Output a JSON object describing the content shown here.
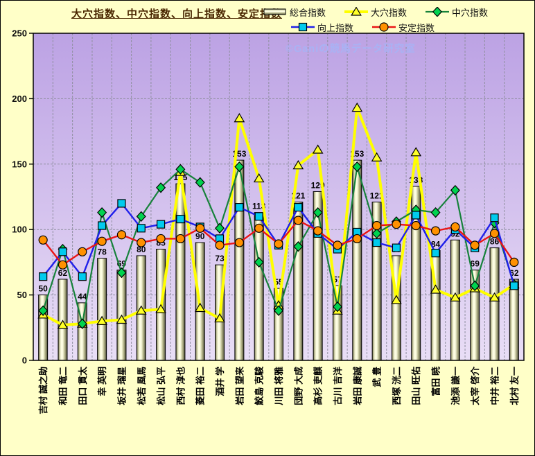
{
  "title": "大穴指数、中穴指数、向上指数、安定指数",
  "watermark": "©Ganiの競馬データ研究室",
  "colors": {
    "outer_bg": "#ffffc8",
    "title_color": "#4a2600",
    "plot_bg_top": "#bca2e4",
    "plot_bg_bottom": "#e9def6",
    "gridline": "#8f8f9f",
    "bar_edge_dark": "#50503a",
    "bar_mid": "#b9b98e",
    "bar_highlight": "#fdfde2",
    "watermark_color": "#a9b2f4",
    "axis_text": "#101010"
  },
  "legend": {
    "items": [
      {
        "label": "総合指数",
        "swatch": "bar"
      },
      {
        "label": "大穴指数",
        "swatch": "triangle"
      },
      {
        "label": "中穴指数",
        "swatch": "diamond"
      },
      {
        "label": "向上指数",
        "swatch": "square"
      },
      {
        "label": "安定指数",
        "swatch": "circle"
      }
    ]
  },
  "chart_data": {
    "type": "bar",
    "title": "大穴指数、中穴指数、向上指数、安定指数",
    "xlabel": "",
    "ylabel": "",
    "ylim": [
      0,
      250
    ],
    "y_ticks": [
      0,
      50,
      100,
      150,
      200,
      250
    ],
    "grid": true,
    "legend_position": "top",
    "categories": [
      "吉村 誠之助",
      "和田 竜二",
      "田口 貫太",
      "幸 英明",
      "坂井 瑠星",
      "松若 風馬",
      "松山 弘平",
      "西村 淳也",
      "菱田 裕二",
      "酒井 学",
      "岩田 望来",
      "鮫島 克駿",
      "川田 将雅",
      "団野 大成",
      "高杉 吏麒",
      "古川 吉洋",
      "岩田 康誠",
      "武 豊",
      "西塚 洸二",
      "田山 旺佑",
      "富田 暁",
      "池添 謙一",
      "太宰 啓介",
      "中井 裕二",
      "北村 友一"
    ],
    "series": [
      {
        "name": "総合指数",
        "type": "bar",
        "show_labels": true,
        "values": [
          50,
          62,
          44,
          78,
          69,
          80,
          85,
          135,
          90,
          73,
          153,
          113,
          55,
          121,
          129,
          57,
          153,
          121,
          80,
          133,
          84,
          92,
          69,
          86,
          62
        ]
      },
      {
        "name": "大穴指数",
        "type": "line",
        "marker": "triangle",
        "color": "#ffff00",
        "marker_color": "#ffff29",
        "width": 4,
        "values": [
          35,
          27,
          28,
          30,
          31,
          38,
          39,
          144,
          40,
          32,
          185,
          139,
          42,
          149,
          161,
          38,
          193,
          155,
          46,
          159,
          54,
          48,
          55,
          48,
          58
        ]
      },
      {
        "name": "中穴指数",
        "type": "line",
        "marker": "diamond",
        "color": "#17823b",
        "marker_color": "#00d24f",
        "width": 2.2,
        "values": [
          38,
          85,
          28,
          113,
          67,
          110,
          132,
          146,
          136,
          101,
          148,
          75,
          38,
          87,
          113,
          41,
          148,
          97,
          106,
          115,
          113,
          130,
          57,
          105,
          58
        ]
      },
      {
        "name": "向上指数",
        "type": "line",
        "marker": "square",
        "color": "#1f1fea",
        "marker_color": "#00cbee",
        "width": 2.4,
        "values": [
          64,
          83,
          64,
          103,
          120,
          101,
          104,
          108,
          102,
          93,
          117,
          110,
          88,
          117,
          97,
          85,
          98,
          90,
          86,
          111,
          82,
          100,
          86,
          109,
          57
        ]
      },
      {
        "name": "安定指数",
        "type": "line",
        "marker": "circle",
        "color": "#ea1515",
        "marker_color": "#ff9100",
        "width": 2.4,
        "values": [
          92,
          73,
          83,
          91,
          96,
          90,
          93,
          93,
          101,
          88,
          90,
          101,
          89,
          107,
          99,
          88,
          93,
          103,
          104,
          103,
          99,
          102,
          88,
          97,
          75
        ]
      }
    ]
  }
}
